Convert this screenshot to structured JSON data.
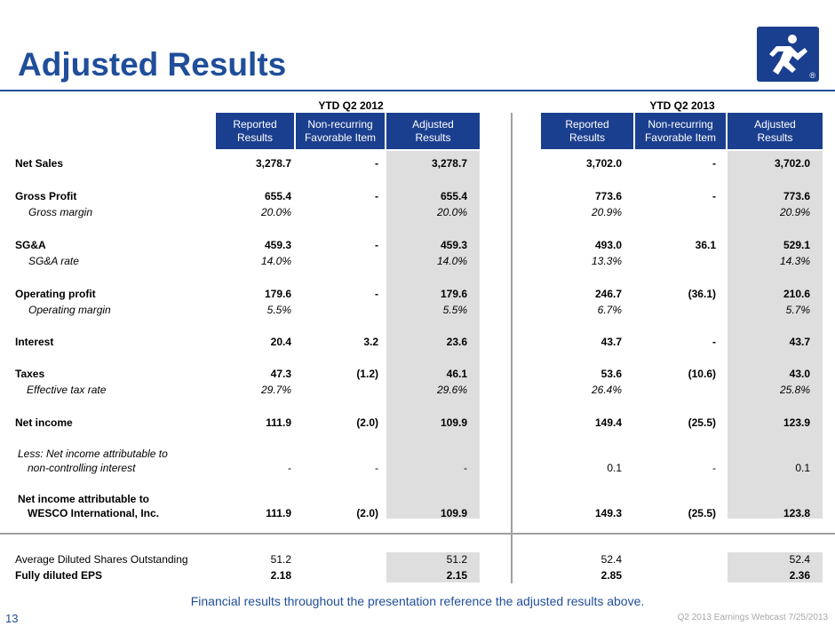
{
  "title": "Adjusted Results",
  "logo_mark": "®",
  "group_2012": "YTD Q2 2012",
  "group_2013": "YTD Q2 2013",
  "headers": {
    "reported": "Reported\nResults",
    "nonrecurring": "Non-recurring\nFavorable Item",
    "adjusted": "Adjusted\nResults"
  },
  "rows": [
    {
      "label": "Net Sales",
      "v": [
        "3,278.7",
        "-",
        "3,278.7",
        "3,702.0",
        "-",
        "3,702.0"
      ]
    },
    {
      "label": "Gross Profit",
      "v": [
        "655.4",
        "-",
        "655.4",
        "773.6",
        "-",
        "773.6"
      ]
    },
    {
      "label": "Gross margin",
      "v": [
        "20.0%",
        "",
        "20.0%",
        "20.9%",
        "",
        "20.9%"
      ]
    },
    {
      "label": "SG&A",
      "v": [
        "459.3",
        "-",
        "459.3",
        "493.0",
        "36.1",
        "529.1"
      ]
    },
    {
      "label": "SG&A rate",
      "v": [
        "14.0%",
        "",
        "14.0%",
        "13.3%",
        "",
        "14.3%"
      ]
    },
    {
      "label": "Operating profit",
      "v": [
        "179.6",
        "-",
        "179.6",
        "246.7",
        "(36.1)",
        "210.6"
      ]
    },
    {
      "label": "Operating margin",
      "v": [
        "5.5%",
        "",
        "5.5%",
        "6.7%",
        "",
        "5.7%"
      ]
    },
    {
      "label": "Interest",
      "v": [
        "20.4",
        "3.2",
        "23.6",
        "43.7",
        "-",
        "43.7"
      ]
    },
    {
      "label": "Taxes",
      "v": [
        "47.3",
        "(1.2)",
        "46.1",
        "53.6",
        "(10.6)",
        "43.0"
      ]
    },
    {
      "label": "Effective tax rate",
      "v": [
        "29.7%",
        "",
        "29.6%",
        "26.4%",
        "",
        "25.8%"
      ]
    },
    {
      "label": "Net income",
      "v": [
        "111.9",
        "(2.0)",
        "109.9",
        "149.4",
        "(25.5)",
        "123.9"
      ]
    },
    {
      "label_line1": "Less:  Net income attributable to",
      "label_line2": "non-controlling interest",
      "v": [
        "-",
        "-",
        "-",
        "0.1",
        "-",
        "0.1"
      ]
    },
    {
      "label_line1": "Net income attributable to",
      "label_line2": "WESCO International, Inc.",
      "v": [
        "111.9",
        "(2.0)",
        "109.9",
        "149.3",
        "(25.5)",
        "123.8"
      ]
    },
    {
      "label": "Average Diluted Shares Outstanding",
      "v": [
        "51.2",
        "",
        "51.2",
        "52.4",
        "",
        "52.4"
      ]
    },
    {
      "label": "Fully diluted EPS",
      "v": [
        "2.18",
        "",
        "2.15",
        "2.85",
        "",
        "2.36"
      ]
    }
  ],
  "footer_note": "Financial results throughout the presentation reference the adjusted results above.",
  "page_number": "13",
  "footer_right": "Q2 2013 Earnings Webcast 7/25/2013"
}
